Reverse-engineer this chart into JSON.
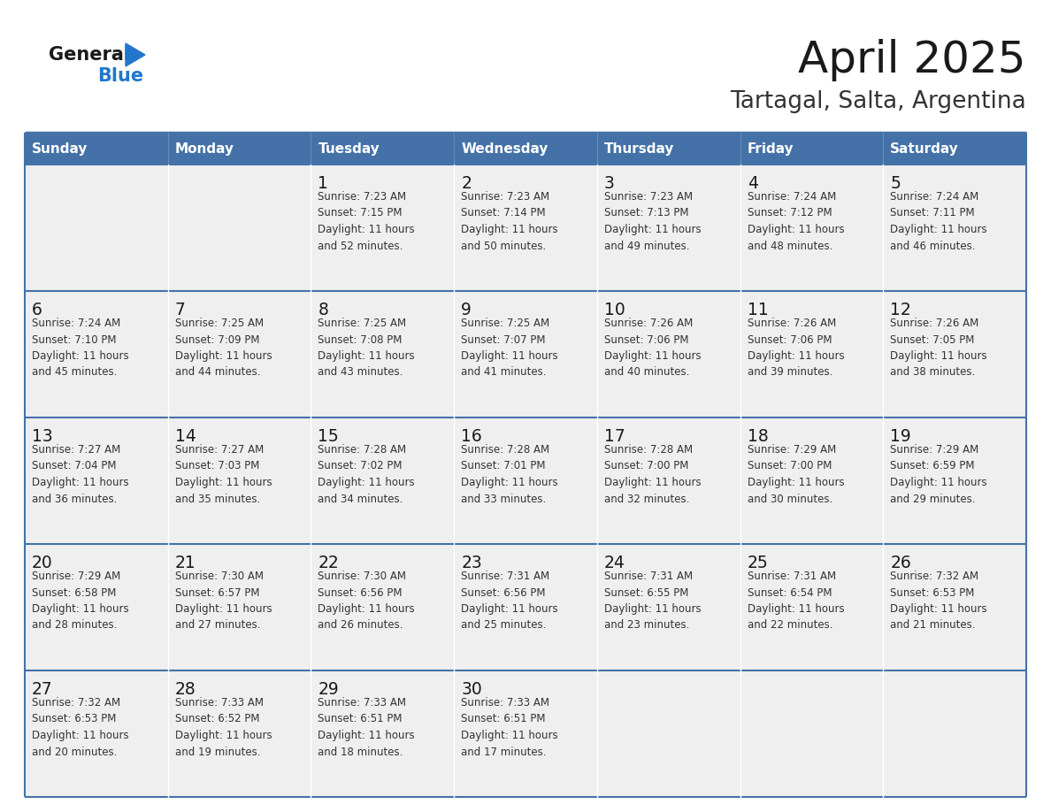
{
  "title": "April 2025",
  "subtitle": "Tartagal, Salta, Argentina",
  "header_color": "#4472a8",
  "header_text_color": "#ffffff",
  "cell_bg_color": "#efefef",
  "cell_empty_bg_color": "#ffffff",
  "border_color": "#4472a8",
  "row_divider_color": "#4472a8",
  "day_names": [
    "Sunday",
    "Monday",
    "Tuesday",
    "Wednesday",
    "Thursday",
    "Friday",
    "Saturday"
  ],
  "title_color": "#1a1a1a",
  "subtitle_color": "#333333",
  "info_text_color": "#333333",
  "day_num_color": "#1a1a1a",
  "logo_general_color": "#1a1a1a",
  "logo_blue_color": "#2277cc",
  "logo_triangle_color": "#2277cc",
  "weeks": [
    [
      {
        "day": "",
        "info": ""
      },
      {
        "day": "",
        "info": ""
      },
      {
        "day": "1",
        "info": "Sunrise: 7:23 AM\nSunset: 7:15 PM\nDaylight: 11 hours\nand 52 minutes."
      },
      {
        "day": "2",
        "info": "Sunrise: 7:23 AM\nSunset: 7:14 PM\nDaylight: 11 hours\nand 50 minutes."
      },
      {
        "day": "3",
        "info": "Sunrise: 7:23 AM\nSunset: 7:13 PM\nDaylight: 11 hours\nand 49 minutes."
      },
      {
        "day": "4",
        "info": "Sunrise: 7:24 AM\nSunset: 7:12 PM\nDaylight: 11 hours\nand 48 minutes."
      },
      {
        "day": "5",
        "info": "Sunrise: 7:24 AM\nSunset: 7:11 PM\nDaylight: 11 hours\nand 46 minutes."
      }
    ],
    [
      {
        "day": "6",
        "info": "Sunrise: 7:24 AM\nSunset: 7:10 PM\nDaylight: 11 hours\nand 45 minutes."
      },
      {
        "day": "7",
        "info": "Sunrise: 7:25 AM\nSunset: 7:09 PM\nDaylight: 11 hours\nand 44 minutes."
      },
      {
        "day": "8",
        "info": "Sunrise: 7:25 AM\nSunset: 7:08 PM\nDaylight: 11 hours\nand 43 minutes."
      },
      {
        "day": "9",
        "info": "Sunrise: 7:25 AM\nSunset: 7:07 PM\nDaylight: 11 hours\nand 41 minutes."
      },
      {
        "day": "10",
        "info": "Sunrise: 7:26 AM\nSunset: 7:06 PM\nDaylight: 11 hours\nand 40 minutes."
      },
      {
        "day": "11",
        "info": "Sunrise: 7:26 AM\nSunset: 7:06 PM\nDaylight: 11 hours\nand 39 minutes."
      },
      {
        "day": "12",
        "info": "Sunrise: 7:26 AM\nSunset: 7:05 PM\nDaylight: 11 hours\nand 38 minutes."
      }
    ],
    [
      {
        "day": "13",
        "info": "Sunrise: 7:27 AM\nSunset: 7:04 PM\nDaylight: 11 hours\nand 36 minutes."
      },
      {
        "day": "14",
        "info": "Sunrise: 7:27 AM\nSunset: 7:03 PM\nDaylight: 11 hours\nand 35 minutes."
      },
      {
        "day": "15",
        "info": "Sunrise: 7:28 AM\nSunset: 7:02 PM\nDaylight: 11 hours\nand 34 minutes."
      },
      {
        "day": "16",
        "info": "Sunrise: 7:28 AM\nSunset: 7:01 PM\nDaylight: 11 hours\nand 33 minutes."
      },
      {
        "day": "17",
        "info": "Sunrise: 7:28 AM\nSunset: 7:00 PM\nDaylight: 11 hours\nand 32 minutes."
      },
      {
        "day": "18",
        "info": "Sunrise: 7:29 AM\nSunset: 7:00 PM\nDaylight: 11 hours\nand 30 minutes."
      },
      {
        "day": "19",
        "info": "Sunrise: 7:29 AM\nSunset: 6:59 PM\nDaylight: 11 hours\nand 29 minutes."
      }
    ],
    [
      {
        "day": "20",
        "info": "Sunrise: 7:29 AM\nSunset: 6:58 PM\nDaylight: 11 hours\nand 28 minutes."
      },
      {
        "day": "21",
        "info": "Sunrise: 7:30 AM\nSunset: 6:57 PM\nDaylight: 11 hours\nand 27 minutes."
      },
      {
        "day": "22",
        "info": "Sunrise: 7:30 AM\nSunset: 6:56 PM\nDaylight: 11 hours\nand 26 minutes."
      },
      {
        "day": "23",
        "info": "Sunrise: 7:31 AM\nSunset: 6:56 PM\nDaylight: 11 hours\nand 25 minutes."
      },
      {
        "day": "24",
        "info": "Sunrise: 7:31 AM\nSunset: 6:55 PM\nDaylight: 11 hours\nand 23 minutes."
      },
      {
        "day": "25",
        "info": "Sunrise: 7:31 AM\nSunset: 6:54 PM\nDaylight: 11 hours\nand 22 minutes."
      },
      {
        "day": "26",
        "info": "Sunrise: 7:32 AM\nSunset: 6:53 PM\nDaylight: 11 hours\nand 21 minutes."
      }
    ],
    [
      {
        "day": "27",
        "info": "Sunrise: 7:32 AM\nSunset: 6:53 PM\nDaylight: 11 hours\nand 20 minutes."
      },
      {
        "day": "28",
        "info": "Sunrise: 7:33 AM\nSunset: 6:52 PM\nDaylight: 11 hours\nand 19 minutes."
      },
      {
        "day": "29",
        "info": "Sunrise: 7:33 AM\nSunset: 6:51 PM\nDaylight: 11 hours\nand 18 minutes."
      },
      {
        "day": "30",
        "info": "Sunrise: 7:33 AM\nSunset: 6:51 PM\nDaylight: 11 hours\nand 17 minutes."
      },
      {
        "day": "",
        "info": ""
      },
      {
        "day": "",
        "info": ""
      },
      {
        "day": "",
        "info": ""
      }
    ]
  ]
}
